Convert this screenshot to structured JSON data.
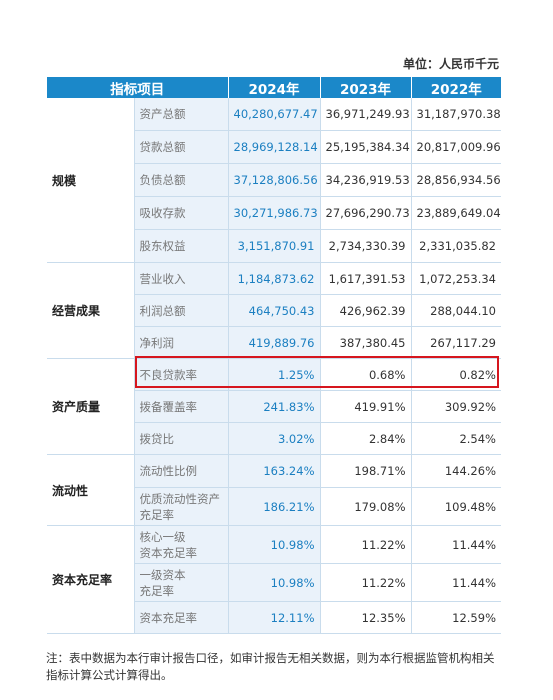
{
  "unit": "单位：人民币千元",
  "header": {
    "item": "指标项目",
    "y2024": "2024年",
    "y2023": "2023年",
    "y2022": "2022年"
  },
  "groups": [
    {
      "category": "规模",
      "rows": [
        {
          "item": "资产总额",
          "v2024": "40,280,677.47",
          "v2023": "36,971,249.93",
          "v2022": "31,187,970.38"
        },
        {
          "item": "贷款总额",
          "v2024": "28,969,128.14",
          "v2023": "25,195,384.34",
          "v2022": "20,817,009.96"
        },
        {
          "item": "负债总额",
          "v2024": "37,128,806.56",
          "v2023": "34,236,919.53",
          "v2022": "28,856,934.56"
        },
        {
          "item": "吸收存款",
          "v2024": "30,271,986.73",
          "v2023": "27,696,290.73",
          "v2022": "23,889,649.04"
        },
        {
          "item": "股东权益",
          "v2024": "3,151,870.91",
          "v2023": "2,734,330.39",
          "v2022": "2,331,035.82"
        }
      ]
    },
    {
      "category": "经营成果",
      "rows": [
        {
          "item": "营业收入",
          "v2024": "1,184,873.62",
          "v2023": "1,617,391.53",
          "v2022": "1,072,253.34"
        },
        {
          "item": "利润总额",
          "v2024": "464,750.43",
          "v2023": "426,962.39",
          "v2022": "288,044.10"
        },
        {
          "item": "净利润",
          "v2024": "419,889.76",
          "v2023": "387,380.45",
          "v2022": "267,117.29"
        }
      ]
    },
    {
      "category": "资产质量",
      "rows": [
        {
          "item": "不良贷款率",
          "v2024": "1.25%",
          "v2023": "0.68%",
          "v2022": "0.82%"
        },
        {
          "item": "拨备覆盖率",
          "v2024": "241.83%",
          "v2023": "419.91%",
          "v2022": "309.92%"
        },
        {
          "item": "拨贷比",
          "v2024": "3.02%",
          "v2023": "2.84%",
          "v2022": "2.54%"
        }
      ]
    },
    {
      "category": "流动性",
      "rows": [
        {
          "item": "流动性比例",
          "v2024": "163.24%",
          "v2023": "198.71%",
          "v2022": "144.26%"
        },
        {
          "item_line1": "优质流动性资产",
          "item_line2": "充足率",
          "v2024": "186.21%",
          "v2023": "179.08%",
          "v2022": "109.48%"
        }
      ]
    },
    {
      "category": "资本充足率",
      "rows": [
        {
          "item_line1": "核心一级",
          "item_line2": "资本充足率",
          "v2024": "10.98%",
          "v2023": "11.22%",
          "v2022": "11.44%"
        },
        {
          "item_line1": "一级资本",
          "item_line2": "充足率",
          "v2024": "10.98%",
          "v2023": "11.22%",
          "v2022": "11.44%"
        },
        {
          "item": "资本充足率",
          "v2024": "12.11%",
          "v2023": "12.35%",
          "v2022": "12.59%"
        }
      ]
    }
  ],
  "note": "注：表中数据为本行审计报告口径，如审计报告无相关数据，则为本行根据监管机构相关指标计算公式计算得出。",
  "colors": {
    "header_bg": "#1b88c9",
    "value_2024": "#1b7fc1",
    "highlight_border": "#d6161e"
  }
}
